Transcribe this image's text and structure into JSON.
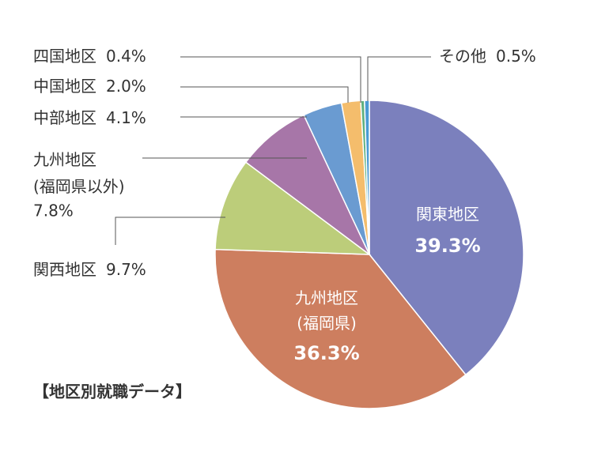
{
  "chart_data": {
    "type": "pie",
    "title": "【地区別就職データ】",
    "categories": [
      "関東地区",
      "九州地区\n(福岡県)",
      "関西地区",
      "九州地区\n(福岡県以外)",
      "中部地区",
      "中国地区",
      "四国地区",
      "その他"
    ],
    "values": [
      39.3,
      36.3,
      9.7,
      7.8,
      4.1,
      2.0,
      0.4,
      0.5
    ],
    "value_labels": [
      "39.3%",
      "36.3%",
      "9.7%",
      "7.8%",
      "4.1%",
      "2.0%",
      "0.4%",
      "0.5%"
    ],
    "colors": [
      "#7b80bd",
      "#cd7e5f",
      "#bccd7a",
      "#a776a8",
      "#6a9bd1",
      "#f4bd6c",
      "#5fb07f",
      "#4a9bd4"
    ]
  }
}
